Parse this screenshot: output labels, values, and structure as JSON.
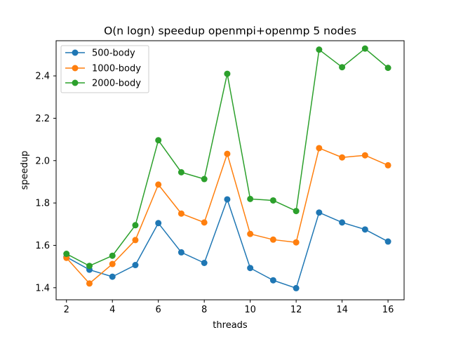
{
  "chart_data": {
    "type": "line",
    "title": "O(n logn) speedup openmpi+openmp 5 nodes",
    "xlabel": "threads",
    "ylabel": "speedup",
    "x": [
      2,
      3,
      4,
      5,
      6,
      7,
      8,
      9,
      10,
      11,
      12,
      13,
      14,
      15,
      16
    ],
    "xlim": [
      1.55,
      16.7
    ],
    "ylim": [
      1.343,
      2.566
    ],
    "xticks": [
      2,
      4,
      6,
      8,
      10,
      12,
      14,
      16
    ],
    "yticks": [
      1.4,
      1.6,
      1.8,
      2.0,
      2.2,
      2.4
    ],
    "ytick_labels": [
      "1.4",
      "1.6",
      "1.8",
      "2.0",
      "2.2",
      "2.4"
    ],
    "grid": false,
    "legend": "top-left",
    "series": [
      {
        "name": "500-body",
        "color": "#1f77b4",
        "values": [
          1.545,
          1.485,
          1.452,
          1.507,
          1.705,
          1.567,
          1.517,
          1.817,
          1.493,
          1.435,
          1.398,
          1.755,
          1.708,
          1.675,
          1.618
        ]
      },
      {
        "name": "1000-body",
        "color": "#ff7f0e",
        "values": [
          1.541,
          1.42,
          1.512,
          1.625,
          1.887,
          1.75,
          1.708,
          2.032,
          1.654,
          1.627,
          1.614,
          2.059,
          2.015,
          2.025,
          1.978
        ]
      },
      {
        "name": "2000-body",
        "color": "#2ca02c",
        "values": [
          1.56,
          1.503,
          1.551,
          1.695,
          2.096,
          1.945,
          1.913,
          2.41,
          1.819,
          1.812,
          1.762,
          2.524,
          2.441,
          2.529,
          2.438
        ]
      }
    ]
  }
}
